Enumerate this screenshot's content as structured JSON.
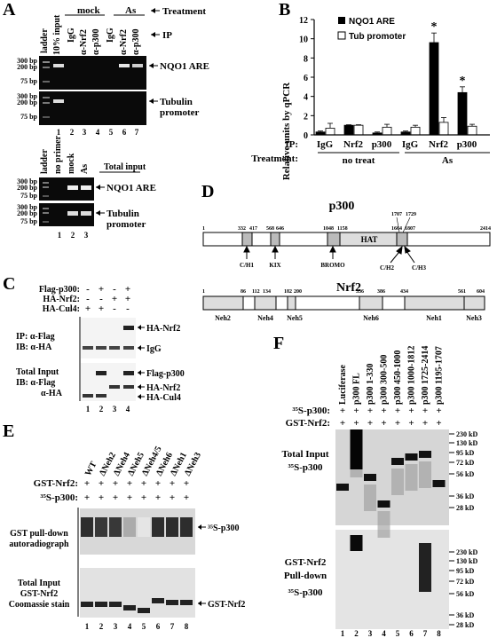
{
  "panelA": {
    "letter": "A",
    "treatment_label": "Treatment",
    "ip_label": "IP",
    "mock": "mock",
    "as": "As",
    "lane_headers": [
      "ladder",
      "10% input",
      "IgG",
      "α-Nrf2",
      "α-p300",
      "IgG",
      "α-Nrf2",
      "α-p300"
    ],
    "bp": [
      "300 bp",
      "200 bp",
      "75 bp"
    ],
    "band_nqo1": "NQO1 ARE",
    "band_tub1": "Tubulin",
    "band_tub2": "promoter",
    "lanes": [
      "1",
      "2",
      "3",
      "4",
      "5",
      "6",
      "7"
    ],
    "lower_headers": [
      "ladder",
      "no primer",
      "mock",
      "As"
    ],
    "total_input": "Total input",
    "lower_lanes": [
      "1",
      "2",
      "3"
    ]
  },
  "panelB": {
    "letter": "B",
    "ylabel": "Relative units by qPCR",
    "yticks": [
      "0",
      "2",
      "4",
      "6",
      "8",
      "10",
      "12"
    ],
    "legend": [
      "NQO1 ARE",
      "Tub promoter"
    ],
    "ip_label": "IP:",
    "treatment_label": "Treatment:",
    "group_no": "no treat",
    "group_as": "As",
    "star": "*"
  },
  "chart_data": {
    "type": "bar",
    "categories": [
      "IgG",
      "Nrf2",
      "p300",
      "IgG",
      "Nrf2",
      "p300"
    ],
    "series": [
      {
        "name": "NQO1 ARE",
        "values": [
          0.3,
          1.0,
          0.2,
          0.3,
          9.6,
          4.4
        ],
        "errors": [
          0.1,
          0.05,
          0.1,
          0.1,
          1.0,
          0.6
        ]
      },
      {
        "name": "Tub promoter",
        "values": [
          0.7,
          1.0,
          0.8,
          0.8,
          1.3,
          0.9
        ],
        "errors": [
          0.5,
          0.05,
          0.3,
          0.2,
          0.5,
          0.2
        ]
      }
    ],
    "xlabel": "",
    "ylabel": "Relative units by qPCR",
    "ylim": [
      0,
      12
    ],
    "legend": "top-left"
  },
  "panelC": {
    "letter": "C",
    "rows": [
      "Flag-p300:",
      "HA-Nrf2:",
      "HA-Cul4:"
    ],
    "signs": [
      [
        "-",
        "+",
        "-",
        "+"
      ],
      [
        "-",
        "-",
        "+",
        "+"
      ],
      [
        "+",
        "+",
        "-",
        "-"
      ]
    ],
    "ip1": "IP: α-Flag",
    "ib1": "IB: α-HA",
    "ti1": "Total Input",
    "ti2": "IB: α-Flag",
    "ti3": "α-HA",
    "bands": [
      "HA-Nrf2",
      "IgG",
      "Flag-p300",
      "HA-Nrf2",
      "HA-Cul4"
    ],
    "lanes": [
      "1",
      "2",
      "3",
      "4"
    ]
  },
  "panelD": {
    "letter": "D",
    "p300": "p300",
    "nrf2": "Nrf2",
    "p300_ticks": [
      "1",
      "332",
      "417",
      "568",
      "646",
      "1048",
      "1158",
      "1664",
      "1707",
      "1729",
      "1807",
      "2414"
    ],
    "p300_domains": [
      "HAT",
      "C/H1",
      "KIX",
      "BROMO",
      "C/H2",
      "C/H3"
    ],
    "nrf2_ticks": [
      "1",
      "86",
      "112",
      "134",
      "182",
      "200",
      "336",
      "386",
      "434",
      "561",
      "604"
    ],
    "nrf2_domains": [
      "Neh2",
      "Neh4",
      "Neh5",
      "Neh6",
      "Neh1",
      "Neh3"
    ]
  },
  "panelE": {
    "letter": "E",
    "gst_label": "GST-Nrf2:",
    "p300_label": "³⁵S-p300:",
    "lanes_hdr": [
      "WT",
      "ΔNeh2",
      "ΔNeh4",
      "ΔNeh5",
      "ΔNeh4/5",
      "ΔNeh6",
      "ΔNeh1",
      "ΔNeh3"
    ],
    "plus": "+",
    "left1": [
      "GST pull-down",
      "autoradiograph"
    ],
    "left2": [
      "Total Input",
      "GST-Nrf2",
      "Coomassie stain"
    ],
    "band1": "³⁵S-p300",
    "band2": "GST-Nrf2",
    "lanes": [
      "1",
      "2",
      "3",
      "4",
      "5",
      "6",
      "7",
      "8"
    ]
  },
  "panelF": {
    "letter": "F",
    "p300_label": "³⁵S-p300:",
    "gst_label": "GST-Nrf2:",
    "lanes_hdr": [
      "Luciferase",
      "p300 FL",
      "p300 1-330",
      "p300 300-500",
      "p300 450-1000",
      "p300 1000-1812",
      "p300 1725-2414",
      "p300 1195-1707"
    ],
    "plus": "+",
    "left1": [
      "Total Input",
      "³⁵S-p300"
    ],
    "left2": [
      "GST-Nrf2",
      "Pull-down",
      "³⁵S-p300"
    ],
    "mw": [
      "230 kD",
      "130 kD",
      "95 kD",
      "72 kD",
      "56 kD",
      "36 kD",
      "28 kD"
    ],
    "lanes": [
      "1",
      "2",
      "3",
      "4",
      "5",
      "6",
      "7",
      "8"
    ]
  }
}
